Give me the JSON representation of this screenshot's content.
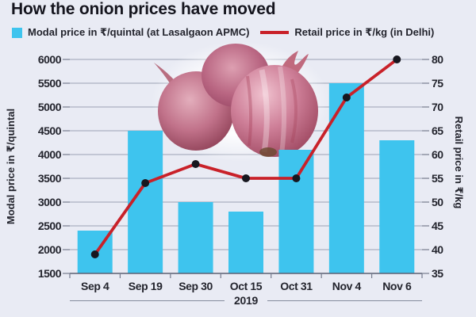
{
  "title": "How the onion prices have moved",
  "legend": [
    {
      "label": "Modal price in ₹/quintal (at Lasalgaon APMC)",
      "marker": "square",
      "color": "#3ec4ee"
    },
    {
      "label": "Retail price in ₹/kg (in Delhi)",
      "marker": "line",
      "color": "#c92129"
    }
  ],
  "chart_data": {
    "type": "combo-bar-line",
    "categories": [
      "Sep 4",
      "Sep 19",
      "Sep 30",
      "Oct 15",
      "Oct 31",
      "Nov 4",
      "Nov 6"
    ],
    "x_axis_group_label": "2019",
    "series": [
      {
        "name": "Modal price in ₹/quintal (at Lasalgaon APMC)",
        "type": "bar",
        "axis": "left",
        "color": "#3ec4ee",
        "values": [
          2400,
          4500,
          3000,
          2800,
          4100,
          5500,
          4300
        ]
      },
      {
        "name": "Retail price in ₹/kg (in Delhi)",
        "type": "line",
        "axis": "right",
        "color": "#c92129",
        "marker_color": "#17171f",
        "values": [
          39,
          54,
          58,
          55,
          55,
          72,
          80
        ]
      }
    ],
    "left_axis": {
      "label": "Modal price in ₹/quintal",
      "min": 1500,
      "max": 6000,
      "step": 500,
      "ticks": [
        1500,
        2000,
        2500,
        3000,
        3500,
        4000,
        4500,
        5000,
        5500,
        6000
      ]
    },
    "right_axis": {
      "label": "Retail price in ₹/kg",
      "min": 35,
      "max": 80,
      "step": 5,
      "ticks": [
        35,
        40,
        45,
        50,
        55,
        60,
        65,
        70,
        75,
        80
      ]
    },
    "grid": true,
    "legend_position": "top"
  },
  "decor": {
    "image": "red-onions-photo"
  },
  "colors": {
    "background": "#e9ebf4",
    "bar": "#3ec4ee",
    "line": "#c92129",
    "marker": "#17171f",
    "gridline": "#9aa1b3",
    "axis": "#5b6072",
    "text": "#23242d",
    "title": "#15151e"
  }
}
